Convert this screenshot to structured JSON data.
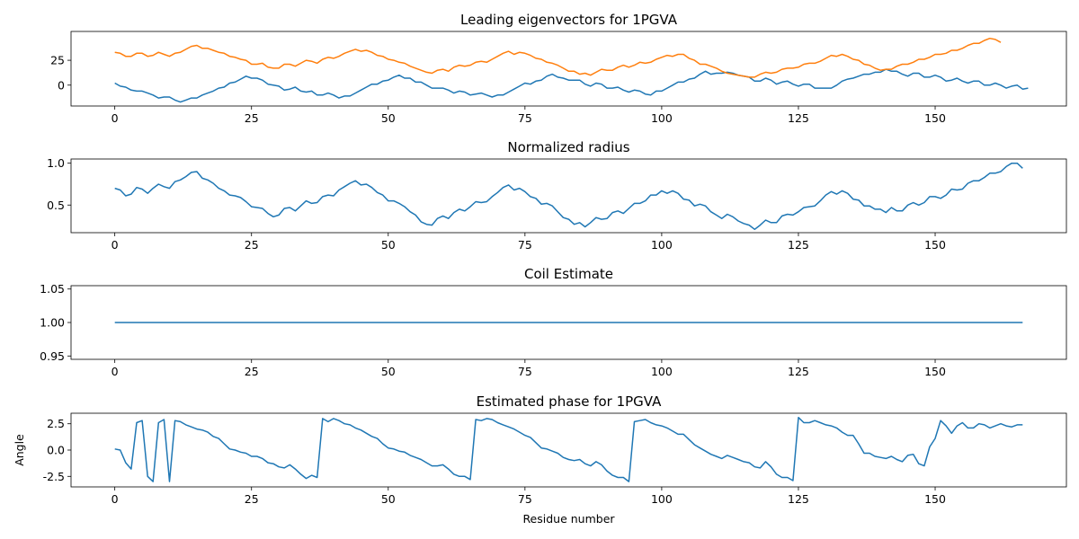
{
  "chart_data": [
    {
      "type": "line",
      "title": "Leading eigenvectors for 1PGVA",
      "xlabel": "",
      "ylabel": "",
      "xlim": [
        -8,
        174
      ],
      "ylim": [
        -21,
        54
      ],
      "xticks": [
        0,
        25,
        50,
        75,
        100,
        125,
        150
      ],
      "yticks": [
        0,
        25
      ],
      "series": [
        {
          "color": "#1f77b4",
          "x0": 0,
          "values": [
            2,
            -1,
            -2,
            -5,
            -6,
            -6,
            -8,
            -10,
            -13,
            -12,
            -12,
            -15,
            -17,
            -15,
            -13,
            -13,
            -10,
            -8,
            -6,
            -3,
            -2,
            2,
            3,
            6,
            9,
            7,
            7,
            5,
            1,
            0,
            -1,
            -5,
            -4,
            -2,
            -6,
            -7,
            -6,
            -10,
            -10,
            -8,
            -10,
            -13,
            -11,
            -11,
            -8,
            -5,
            -2,
            1,
            1,
            4,
            5,
            8,
            10,
            7,
            7,
            3,
            3,
            0,
            -3,
            -3,
            -3,
            -5,
            -8,
            -6,
            -7,
            -10,
            -9,
            -8,
            -10,
            -12,
            -10,
            -10,
            -7,
            -4,
            -1,
            2,
            1,
            4,
            5,
            9,
            11,
            8,
            7,
            5,
            5,
            5,
            1,
            -1,
            2,
            1,
            -3,
            -3,
            -2,
            -5,
            -7,
            -5,
            -6,
            -9,
            -10,
            -6,
            -6,
            -3,
            0,
            3,
            3,
            6,
            7,
            11,
            14,
            11,
            12,
            12,
            13,
            12,
            10,
            9,
            8,
            4,
            4,
            7,
            5,
            1,
            3,
            4,
            1,
            -1,
            1,
            1,
            -3,
            -3,
            -3,
            -3,
            0,
            4,
            6,
            7,
            9,
            11,
            11,
            13,
            13,
            16,
            14,
            14,
            11,
            9,
            12,
            12,
            8,
            8,
            10,
            8,
            4,
            5,
            7,
            4,
            2,
            4,
            4,
            0,
            0,
            2,
            0,
            -3,
            -1,
            0,
            -4,
            -3
          ],
          "name": ""
        },
        {
          "color": "#ff7f0e",
          "x0": 0,
          "values": [
            33,
            32,
            29,
            29,
            32,
            32,
            29,
            30,
            33,
            31,
            29,
            32,
            33,
            36,
            39,
            40,
            37,
            37,
            35,
            33,
            32,
            29,
            28,
            26,
            25,
            21,
            21,
            22,
            18,
            17,
            17,
            21,
            21,
            19,
            22,
            25,
            24,
            22,
            26,
            28,
            27,
            29,
            32,
            34,
            36,
            34,
            35,
            33,
            30,
            29,
            26,
            25,
            23,
            22,
            19,
            17,
            15,
            13,
            12,
            15,
            16,
            14,
            18,
            20,
            19,
            20,
            23,
            24,
            23,
            26,
            29,
            32,
            34,
            31,
            33,
            32,
            30,
            27,
            26,
            23,
            22,
            20,
            17,
            14,
            14,
            11,
            12,
            10,
            13,
            16,
            15,
            15,
            18,
            20,
            18,
            20,
            23,
            22,
            23,
            26,
            28,
            30,
            29,
            31,
            31,
            27,
            25,
            21,
            21,
            19,
            17,
            14,
            12,
            11,
            10,
            9,
            8,
            8,
            11,
            13,
            12,
            13,
            16,
            17,
            17,
            18,
            21,
            22,
            22,
            24,
            27,
            30,
            29,
            31,
            29,
            26,
            25,
            21,
            20,
            17,
            15,
            16,
            16,
            19,
            21,
            21,
            23,
            26,
            26,
            28,
            31,
            31,
            32,
            35,
            35,
            37,
            40,
            42,
            42,
            45,
            47,
            46,
            43
          ],
          "name": ""
        }
      ]
    },
    {
      "type": "line",
      "title": "Normalized radius",
      "xlabel": "",
      "ylabel": "",
      "xlim": [
        -8,
        174
      ],
      "ylim": [
        0.17,
        1.05
      ],
      "xticks": [
        0,
        25,
        50,
        75,
        100,
        125,
        150
      ],
      "yticks": [
        0.5,
        1.0
      ],
      "series": [
        {
          "color": "#1f77b4",
          "x0": 0,
          "values": [
            0.7,
            0.68,
            0.61,
            0.63,
            0.71,
            0.69,
            0.64,
            0.7,
            0.75,
            0.72,
            0.7,
            0.78,
            0.8,
            0.84,
            0.89,
            0.9,
            0.82,
            0.8,
            0.76,
            0.7,
            0.67,
            0.62,
            0.61,
            0.59,
            0.54,
            0.48,
            0.47,
            0.46,
            0.4,
            0.36,
            0.38,
            0.46,
            0.47,
            0.43,
            0.49,
            0.55,
            0.52,
            0.53,
            0.6,
            0.62,
            0.61,
            0.68,
            0.72,
            0.76,
            0.79,
            0.74,
            0.75,
            0.71,
            0.65,
            0.62,
            0.55,
            0.55,
            0.52,
            0.48,
            0.42,
            0.38,
            0.3,
            0.27,
            0.26,
            0.34,
            0.37,
            0.34,
            0.41,
            0.45,
            0.43,
            0.48,
            0.54,
            0.53,
            0.54,
            0.6,
            0.65,
            0.71,
            0.74,
            0.68,
            0.7,
            0.66,
            0.6,
            0.58,
            0.51,
            0.52,
            0.49,
            0.42,
            0.35,
            0.33,
            0.27,
            0.29,
            0.24,
            0.29,
            0.35,
            0.33,
            0.34,
            0.41,
            0.43,
            0.4,
            0.46,
            0.52,
            0.52,
            0.55,
            0.62,
            0.62,
            0.67,
            0.64,
            0.67,
            0.64,
            0.57,
            0.56,
            0.49,
            0.51,
            0.49,
            0.42,
            0.38,
            0.34,
            0.39,
            0.36,
            0.31,
            0.28,
            0.26,
            0.21,
            0.26,
            0.32,
            0.29,
            0.29,
            0.37,
            0.39,
            0.38,
            0.42,
            0.47,
            0.48,
            0.49,
            0.55,
            0.62,
            0.66,
            0.63,
            0.67,
            0.64,
            0.57,
            0.56,
            0.49,
            0.49,
            0.45,
            0.45,
            0.41,
            0.47,
            0.43,
            0.43,
            0.5,
            0.53,
            0.5,
            0.53,
            0.6,
            0.6,
            0.58,
            0.62,
            0.69,
            0.68,
            0.69,
            0.76,
            0.79,
            0.79,
            0.83,
            0.88,
            0.88,
            0.9,
            0.96,
            1.0,
            1.0,
            0.94
          ],
          "name": ""
        }
      ]
    },
    {
      "type": "line",
      "title": "Coil Estimate",
      "xlabel": "",
      "ylabel": "",
      "xlim": [
        -8,
        174
      ],
      "ylim": [
        0.945,
        1.055
      ],
      "xticks": [
        0,
        25,
        50,
        75,
        100,
        125,
        150
      ],
      "yticks": [
        0.95,
        1.0,
        1.05
      ],
      "series": [
        {
          "color": "#1f77b4",
          "x": [
            0,
            166
          ],
          "values": [
            1.0,
            1.0
          ],
          "name": ""
        }
      ]
    },
    {
      "type": "line",
      "title": "Estimated phase for 1PGVA",
      "xlabel": "Residue number",
      "ylabel": "Angle",
      "xlim": [
        -8,
        174
      ],
      "ylim": [
        -3.5,
        3.5
      ],
      "xticks": [
        0,
        25,
        50,
        75,
        100,
        125,
        150
      ],
      "yticks": [
        -2.5,
        0.0,
        2.5
      ],
      "series": [
        {
          "color": "#1f77b4",
          "x0": 0,
          "values": [
            0.1,
            0.0,
            -1.2,
            -1.8,
            2.6,
            2.8,
            -2.5,
            -3.0,
            2.6,
            2.9,
            -3.0,
            2.8,
            2.7,
            2.4,
            2.2,
            2.0,
            1.9,
            1.7,
            1.3,
            1.1,
            0.6,
            0.1,
            0.0,
            -0.2,
            -0.3,
            -0.6,
            -0.6,
            -0.8,
            -1.2,
            -1.3,
            -1.6,
            -1.7,
            -1.4,
            -1.8,
            -2.3,
            -2.7,
            -2.4,
            -2.6,
            3.0,
            2.7,
            3.0,
            2.8,
            2.5,
            2.4,
            2.1,
            1.9,
            1.6,
            1.3,
            1.1,
            0.6,
            0.2,
            0.1,
            -0.1,
            -0.2,
            -0.5,
            -0.7,
            -0.9,
            -1.2,
            -1.5,
            -1.5,
            -1.4,
            -1.8,
            -2.3,
            -2.5,
            -2.5,
            -2.8,
            2.9,
            2.8,
            3.0,
            2.9,
            2.6,
            2.4,
            2.2,
            2.0,
            1.7,
            1.4,
            1.2,
            0.7,
            0.2,
            0.1,
            -0.1,
            -0.3,
            -0.7,
            -0.9,
            -1.0,
            -0.9,
            -1.3,
            -1.5,
            -1.1,
            -1.4,
            -2.0,
            -2.4,
            -2.6,
            -2.6,
            -3.0,
            2.7,
            2.8,
            2.9,
            2.6,
            2.4,
            2.3,
            2.1,
            1.8,
            1.5,
            1.5,
            1.0,
            0.5,
            0.2,
            -0.1,
            -0.4,
            -0.6,
            -0.8,
            -0.5,
            -0.7,
            -0.9,
            -1.1,
            -1.2,
            -1.6,
            -1.7,
            -1.1,
            -1.6,
            -2.3,
            -2.6,
            -2.6,
            -2.9,
            3.1,
            2.6,
            2.6,
            2.8,
            2.6,
            2.4,
            2.3,
            2.1,
            1.7,
            1.4,
            1.4,
            0.6,
            -0.3,
            -0.3,
            -0.6,
            -0.7,
            -0.8,
            -0.6,
            -0.9,
            -1.1,
            -0.5,
            -0.4,
            -1.3,
            -1.5,
            0.3,
            1.1,
            2.8,
            2.3,
            1.6,
            2.3,
            2.6,
            2.1,
            2.1,
            2.5,
            2.4,
            2.1,
            2.3,
            2.5,
            2.3,
            2.2,
            2.4,
            2.4
          ],
          "name": ""
        }
      ]
    }
  ]
}
